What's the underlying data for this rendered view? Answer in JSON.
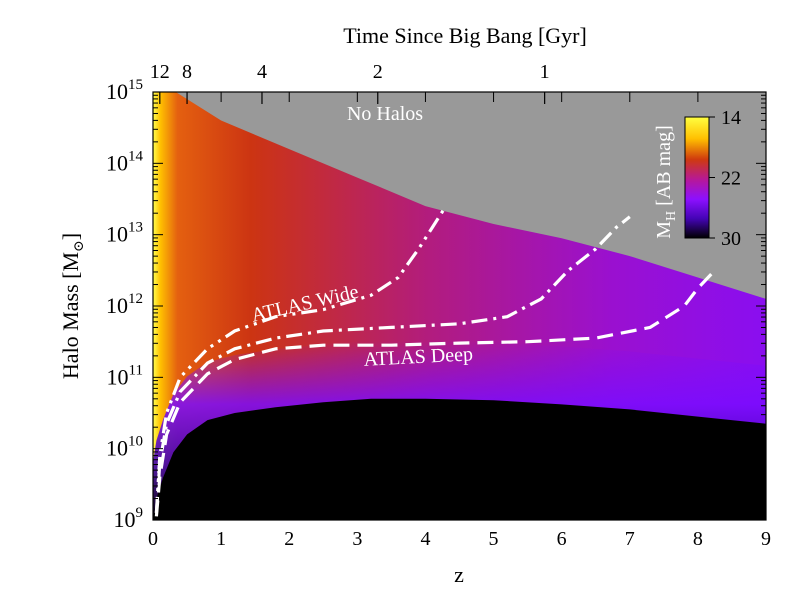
{
  "chart_data": {
    "type": "heatmap",
    "title": "",
    "xlabel": "z",
    "ylabel": "Halo Mass [M",
    "ylabel_symbol": "⊙",
    "ylabel_close": "]",
    "xlim": [
      0,
      9
    ],
    "ylim_log10": [
      9,
      15
    ],
    "x_ticks": [
      0,
      1,
      2,
      3,
      4,
      5,
      6,
      7,
      8,
      9
    ],
    "x_tick_labels": [
      "0",
      "1",
      "2",
      "3",
      "4",
      "5",
      "6",
      "7",
      "8",
      "9"
    ],
    "y_ticks_log10": [
      9,
      10,
      11,
      12,
      13,
      14,
      15
    ],
    "y_tick_base": "10",
    "y_tick_exponents": [
      "9",
      "10",
      "11",
      "12",
      "13",
      "14",
      "15"
    ],
    "top_axis": {
      "label": "Time Since Big Bang [Gyr]",
      "ticks_z": [
        0.1,
        0.5,
        1.6,
        3.3,
        5.75
      ],
      "tick_labels": [
        "12",
        "8",
        "4",
        "2",
        "1"
      ]
    },
    "no_halo_region": {
      "label": "No Halos",
      "boundary_z": [
        0,
        1,
        2,
        3,
        4,
        5,
        6,
        7,
        8,
        9
      ],
      "boundary_log10_mass": [
        15.2,
        14.6,
        14.2,
        13.8,
        13.4,
        13.15,
        12.95,
        12.7,
        12.4,
        12.1
      ]
    },
    "colorbar": {
      "label": "M",
      "label_sub": "H",
      "label_units": " [AB mag]",
      "range": [
        14,
        30
      ],
      "ticks": [
        14,
        22,
        30
      ],
      "tick_labels": [
        "14",
        "22",
        "30"
      ],
      "colors": [
        "#ffff40",
        "#ffbf00",
        "#cf3a0e",
        "#b6189a",
        "#8c10ff",
        "#4404b5",
        "#000000"
      ]
    },
    "series": [
      {
        "name": "ATLAS Wide",
        "style": "dash-dot-dot",
        "x": [
          0.05,
          0.1,
          0.2,
          0.4,
          0.8,
          1.2,
          1.8,
          2.5,
          3.2,
          3.6,
          3.9,
          4.1,
          4.3
        ],
        "log10_mass": [
          9.1,
          9.9,
          10.5,
          11.0,
          11.4,
          11.65,
          11.85,
          11.95,
          12.15,
          12.4,
          12.8,
          13.1,
          13.4
        ]
      },
      {
        "name": "",
        "style": "dash-dot",
        "x": [
          0.05,
          0.1,
          0.2,
          0.4,
          0.8,
          1.2,
          1.8,
          2.5,
          3.5,
          4.5,
          5.2,
          5.7,
          6.1,
          6.5,
          6.8,
          7.0
        ],
        "log10_mass": [
          9.1,
          9.8,
          10.35,
          10.8,
          11.2,
          11.4,
          11.55,
          11.65,
          11.7,
          11.75,
          11.85,
          12.1,
          12.5,
          12.8,
          13.1,
          13.25
        ]
      },
      {
        "name": "ATLAS Deep",
        "style": "dashed",
        "x": [
          0.05,
          0.1,
          0.2,
          0.4,
          0.8,
          1.2,
          1.8,
          2.5,
          3.5,
          4.5,
          5.5,
          6.5,
          7.3,
          7.8,
          8.0,
          8.2
        ],
        "log10_mass": [
          9.05,
          9.6,
          10.2,
          10.65,
          11.05,
          11.25,
          11.4,
          11.45,
          11.45,
          11.48,
          11.5,
          11.55,
          11.7,
          12.0,
          12.25,
          12.45
        ]
      }
    ],
    "threshold_curve": {
      "z": [
        0,
        0.05,
        0.15,
        0.3,
        0.5,
        0.8,
        1.2,
        1.8,
        2.5,
        3.2,
        4,
        5,
        6,
        7,
        8,
        9
      ],
      "log10_mass": [
        9.0,
        9.3,
        9.6,
        9.95,
        10.2,
        10.4,
        10.5,
        10.58,
        10.65,
        10.7,
        10.7,
        10.68,
        10.62,
        10.55,
        10.45,
        10.35
      ]
    },
    "annotations": [
      {
        "text": "ATLAS Wide",
        "z": 2.25,
        "log10_mass": 11.95,
        "rotate": -13
      },
      {
        "text": "ATLAS Deep",
        "z": 3.9,
        "log10_mass": 11.2,
        "rotate": -3
      }
    ]
  }
}
